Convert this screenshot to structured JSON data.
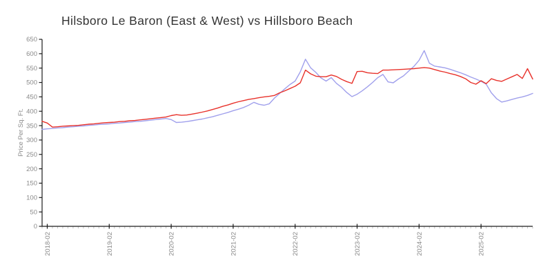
{
  "title": "Hilsboro Le Baron (East & West) vs Hillsboro Beach",
  "colors": {
    "axis": "#1a1a1a",
    "tick_label": "#8a8a8a",
    "minor_tick": "#c2c2c2",
    "title_text": "#333333",
    "red_series": "#e8312a",
    "blue_series": "#a0a0ec",
    "background": "#ffffff"
  },
  "chart_data": {
    "type": "line",
    "title": "Hilsboro Le Baron (East & West) vs Hillsboro Beach",
    "xlabel": "",
    "ylabel": "Price Per Sq. Ft.",
    "ylim": [
      0,
      650
    ],
    "y_tick_step": 50,
    "y_tick_labels": [
      "0",
      "50",
      "100",
      "150",
      "200",
      "250",
      "300",
      "350",
      "400",
      "450",
      "500",
      "550",
      "600",
      "650"
    ],
    "x_start_month": "2018-01",
    "x_end_month": "2025-12",
    "x_tick_labels": [
      "2018-02",
      "2019-02",
      "2020-02",
      "2021-02",
      "2022-02",
      "2023-02",
      "2024-02",
      "2025-02"
    ],
    "grid": false,
    "legend_position": "none",
    "series": [
      {
        "name": "Hilsboro Le Baron (East & West)",
        "color": "#e8312a",
        "values": [
          365,
          359,
          345,
          346,
          348,
          349,
          350,
          351,
          353,
          355,
          356,
          358,
          360,
          361,
          362,
          364,
          365,
          367,
          368,
          370,
          372,
          374,
          376,
          378,
          380,
          385,
          388,
          386,
          387,
          390,
          393,
          397,
          401,
          406,
          411,
          417,
          422,
          428,
          433,
          437,
          441,
          444,
          447,
          450,
          452,
          455,
          464,
          471,
          479,
          487,
          499,
          543,
          530,
          522,
          520,
          520,
          526,
          521,
          511,
          503,
          497,
          538,
          539,
          534,
          532,
          531,
          543,
          543,
          544,
          545,
          546,
          547,
          548,
          550,
          552,
          550,
          545,
          540,
          536,
          531,
          527,
          521,
          513,
          500,
          494,
          506,
          496,
          513,
          507,
          504,
          512,
          520,
          528,
          514,
          548,
          512
        ]
      },
      {
        "name": "Hillsboro Beach",
        "color": "#a0a0ec",
        "values": [
          337,
          339,
          340,
          342,
          343,
          345,
          346,
          348,
          349,
          351,
          352,
          354,
          355,
          356,
          358,
          359,
          361,
          362,
          364,
          365,
          367,
          369,
          371,
          373,
          375,
          371,
          361,
          362,
          364,
          367,
          370,
          373,
          377,
          381,
          386,
          391,
          396,
          402,
          407,
          413,
          421,
          431,
          424,
          421,
          426,
          446,
          462,
          478,
          493,
          505,
          537,
          581,
          551,
          535,
          516,
          505,
          517,
          497,
          483,
          465,
          451,
          459,
          471,
          485,
          500,
          517,
          528,
          502,
          499,
          512,
          523,
          540,
          556,
          577,
          611,
          567,
          557,
          554,
          551,
          546,
          540,
          534,
          527,
          519,
          512,
          504,
          494,
          464,
          444,
          432,
          436,
          441,
          446,
          450,
          455,
          462
        ]
      }
    ]
  }
}
